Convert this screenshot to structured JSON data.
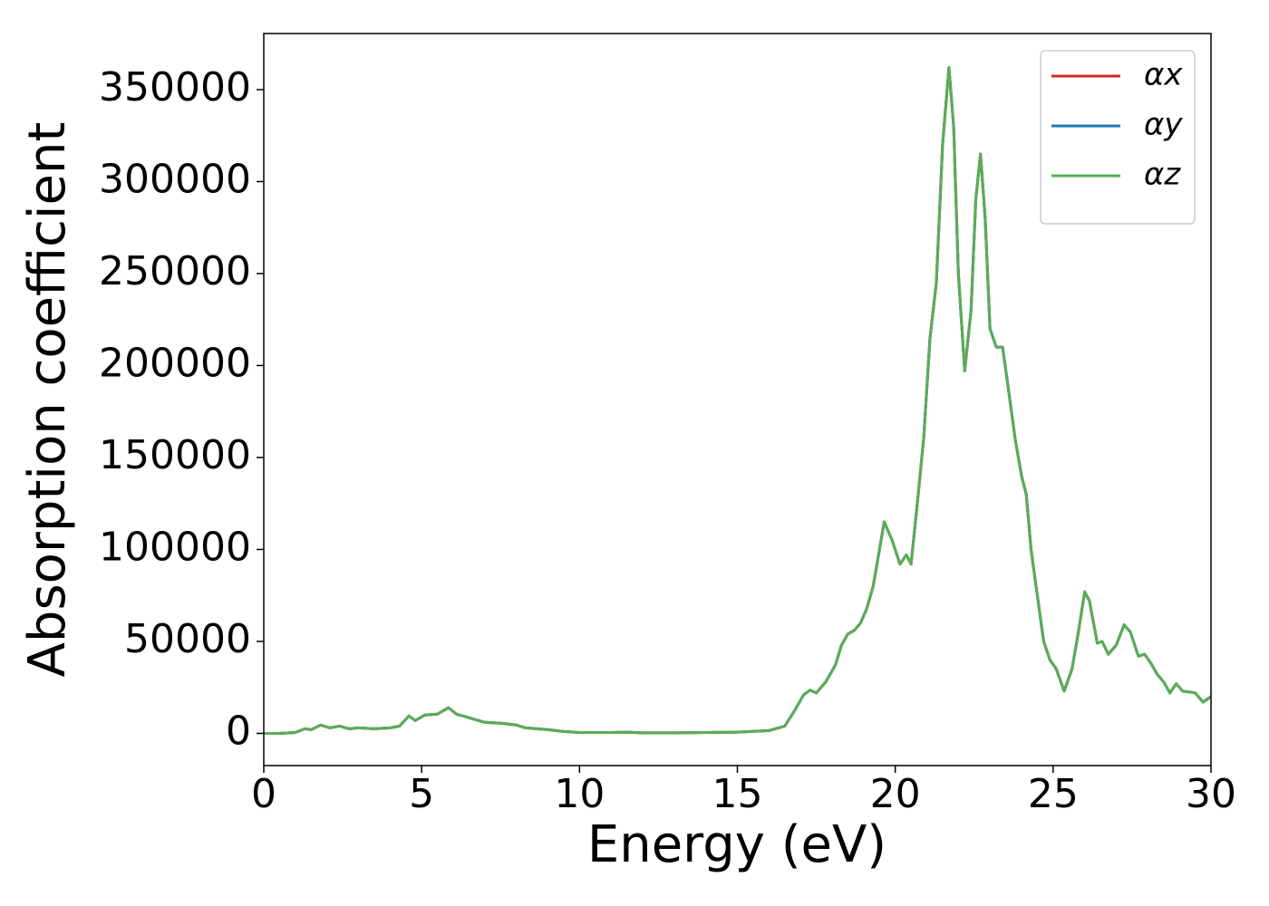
{
  "chart_data": {
    "type": "line",
    "xlabel": "Energy (eV)",
    "ylabel": "Absorption coefficient",
    "x": [
      0,
      0.5,
      1,
      1.3,
      1.5,
      1.8,
      2.1,
      2.4,
      2.7,
      3,
      3.5,
      4,
      4.3,
      4.6,
      4.8,
      5.1,
      5.5,
      5.85,
      6.1,
      6.5,
      7,
      7.5,
      8,
      8.3,
      9,
      9.5,
      10,
      11,
      11.5,
      12,
      13,
      14,
      15,
      16,
      16.5,
      16.8,
      17.1,
      17.3,
      17.5,
      17.8,
      18.1,
      18.3,
      18.5,
      18.7,
      18.9,
      19.1,
      19.3,
      19.5,
      19.65,
      19.9,
      20.15,
      20.35,
      20.5,
      20.7,
      20.9,
      21.1,
      21.3,
      21.5,
      21.7,
      21.85,
      22.0,
      22.2,
      22.4,
      22.55,
      22.7,
      22.85,
      23.0,
      23.2,
      23.4,
      23.6,
      23.8,
      24.0,
      24.15,
      24.3,
      24.5,
      24.7,
      24.9,
      25.1,
      25.35,
      25.6,
      25.8,
      26.0,
      26.15,
      26.4,
      26.55,
      26.75,
      27.0,
      27.25,
      27.45,
      27.7,
      27.9,
      28.1,
      28.3,
      28.5,
      28.7,
      28.9,
      29.1,
      29.5,
      29.75,
      30
    ],
    "series": [
      {
        "name": "αx",
        "color": "#d62728",
        "values": [
          0,
          0,
          500,
          2500,
          2000,
          4500,
          3000,
          4000,
          2500,
          3000,
          2500,
          3000,
          4000,
          9500,
          7000,
          10000,
          10500,
          14000,
          10500,
          8500,
          6000,
          5500,
          4500,
          3000,
          2000,
          1000,
          500,
          500,
          700,
          300,
          300,
          500,
          700,
          1500,
          4000,
          12000,
          21000,
          23500,
          22000,
          28000,
          37000,
          48000,
          54000,
          56000,
          60000,
          68000,
          80000,
          100000,
          115000,
          105000,
          92000,
          97000,
          92000,
          125000,
          160000,
          215000,
          245000,
          320000,
          362000,
          330000,
          250000,
          197000,
          230000,
          290000,
          315000,
          280000,
          220000,
          210000,
          210000,
          185000,
          160000,
          140000,
          130000,
          100000,
          75000,
          50000,
          40000,
          35000,
          23000,
          35000,
          55000,
          77000,
          72000,
          49000,
          50000,
          43000,
          48000,
          59000,
          55000,
          42000,
          43000,
          38000,
          32000,
          28000,
          22000,
          27000,
          23000,
          22000,
          17000,
          20000
        ]
      },
      {
        "name": "αy",
        "color": "#1f77b4",
        "values": [
          0,
          0,
          500,
          2500,
          2000,
          4500,
          3000,
          4000,
          2500,
          3000,
          2500,
          3000,
          4000,
          9500,
          7000,
          10000,
          10500,
          14000,
          10500,
          8500,
          6000,
          5500,
          4500,
          3000,
          2000,
          1000,
          500,
          500,
          700,
          300,
          300,
          500,
          700,
          1500,
          4000,
          12000,
          21000,
          23500,
          22000,
          28000,
          37000,
          48000,
          54000,
          56000,
          60000,
          68000,
          80000,
          100000,
          115000,
          105000,
          92000,
          97000,
          92000,
          125000,
          160000,
          215000,
          245000,
          320000,
          362000,
          330000,
          250000,
          197000,
          230000,
          290000,
          315000,
          280000,
          220000,
          210000,
          210000,
          185000,
          160000,
          140000,
          130000,
          100000,
          75000,
          50000,
          40000,
          35000,
          23000,
          35000,
          55000,
          77000,
          72000,
          49000,
          50000,
          43000,
          48000,
          59000,
          55000,
          42000,
          43000,
          38000,
          32000,
          28000,
          22000,
          27000,
          23000,
          22000,
          17000,
          20000
        ]
      },
      {
        "name": "αz",
        "color": "#5aad55",
        "values": [
          0,
          0,
          500,
          2500,
          2000,
          4500,
          3000,
          4000,
          2500,
          3000,
          2500,
          3000,
          4000,
          9500,
          7000,
          10000,
          10500,
          14000,
          10500,
          8500,
          6000,
          5500,
          4500,
          3000,
          2000,
          1000,
          500,
          500,
          700,
          300,
          300,
          500,
          700,
          1500,
          4000,
          12000,
          21000,
          23500,
          22000,
          28000,
          37000,
          48000,
          54000,
          56000,
          60000,
          68000,
          80000,
          100000,
          115000,
          105000,
          92000,
          97000,
          92000,
          125000,
          160000,
          215000,
          245000,
          320000,
          362000,
          330000,
          250000,
          197000,
          230000,
          290000,
          315000,
          280000,
          220000,
          210000,
          210000,
          185000,
          160000,
          140000,
          130000,
          100000,
          75000,
          50000,
          40000,
          35000,
          23000,
          35000,
          55000,
          77000,
          72000,
          49000,
          50000,
          43000,
          48000,
          59000,
          55000,
          42000,
          43000,
          38000,
          32000,
          28000,
          22000,
          27000,
          23000,
          22000,
          17000,
          20000
        ]
      }
    ],
    "xlim": [
      0,
      30
    ],
    "xticks": [
      0,
      5,
      10,
      15,
      20,
      25,
      30
    ],
    "ylim": [
      -17500,
      380500
    ],
    "yticks": [
      0,
      50000,
      100000,
      150000,
      200000,
      250000,
      300000,
      350000
    ],
    "grid": false,
    "legend": "upper right"
  }
}
